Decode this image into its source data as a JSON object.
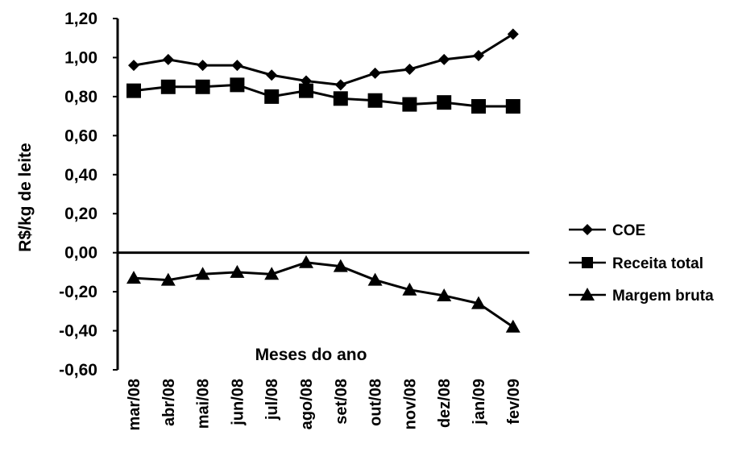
{
  "chart_data": {
    "type": "line",
    "categories": [
      "mar/08",
      "abr/08",
      "mai/08",
      "jun/08",
      "jul/08",
      "ago/08",
      "set/08",
      "out/08",
      "nov/08",
      "dez/08",
      "jan/09",
      "fev/09"
    ],
    "series": [
      {
        "name": "COE",
        "marker": "diamond",
        "values": [
          0.96,
          0.99,
          0.96,
          0.96,
          0.91,
          0.88,
          0.86,
          0.92,
          0.94,
          0.99,
          1.01,
          1.12
        ]
      },
      {
        "name": "Receita total",
        "marker": "square",
        "values": [
          0.83,
          0.85,
          0.85,
          0.86,
          0.8,
          0.83,
          0.79,
          0.78,
          0.76,
          0.77,
          0.75,
          0.75
        ]
      },
      {
        "name": "Margem bruta",
        "marker": "triangle",
        "values": [
          -0.13,
          -0.14,
          -0.11,
          -0.1,
          -0.11,
          -0.05,
          -0.07,
          -0.14,
          -0.19,
          -0.22,
          -0.26,
          -0.38
        ]
      }
    ],
    "xlabel": "Meses do ano",
    "ylabel": "R$/kg de leite",
    "yticks": [
      "1,20",
      "1,00",
      "0,80",
      "0,60",
      "0,40",
      "0,20",
      "0,00",
      "-0,20",
      "-0,40",
      "-0,60"
    ],
    "ylim": [
      -0.6,
      1.2
    ],
    "grid": false,
    "legend_position": "right",
    "line_color": "#000000"
  }
}
